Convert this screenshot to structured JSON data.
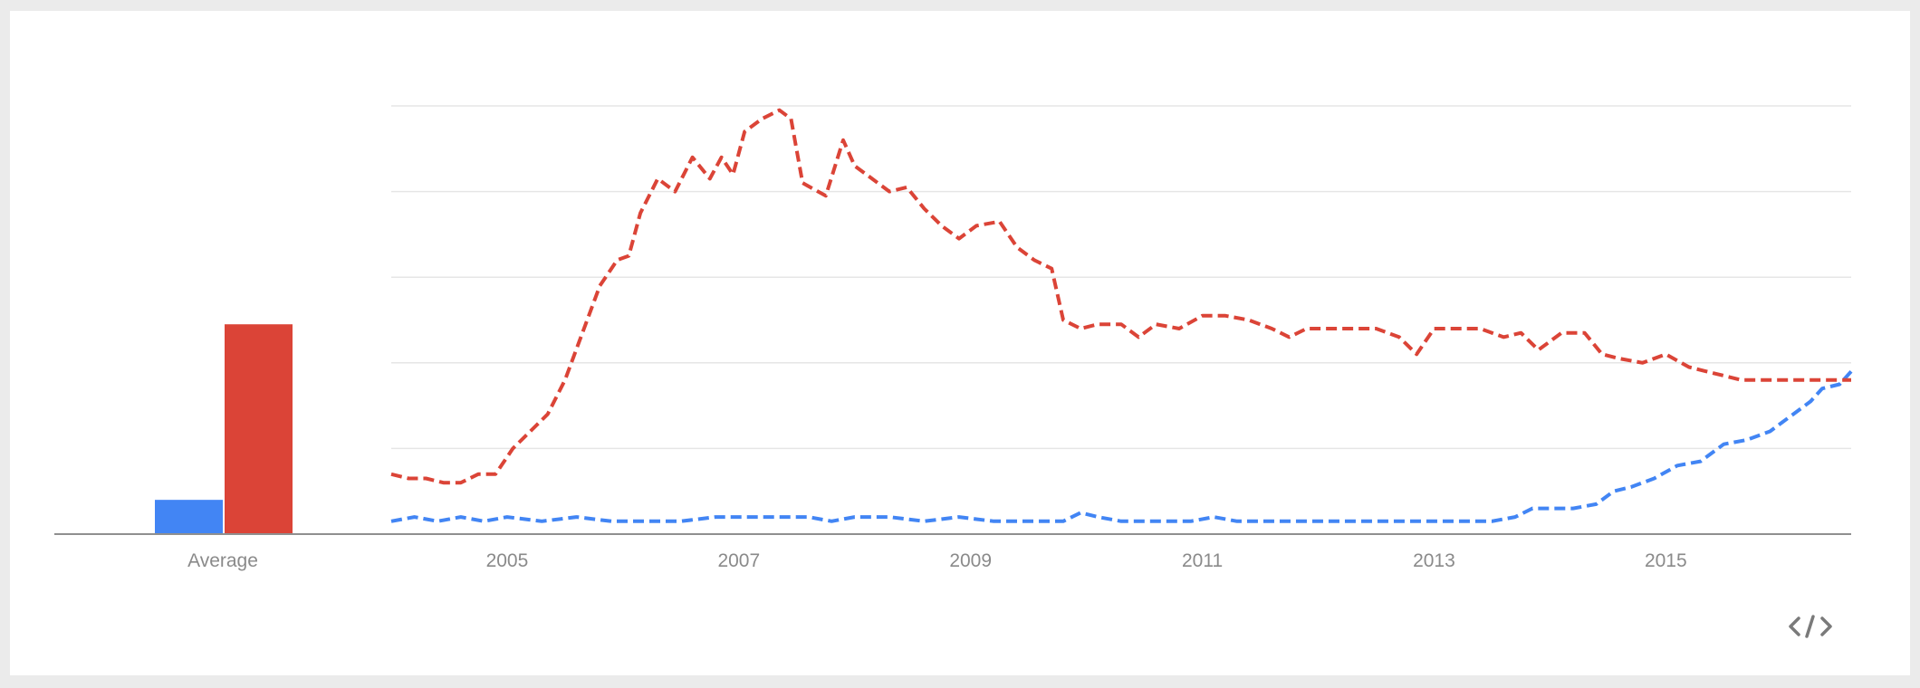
{
  "chart_data": {
    "type": "line",
    "average_bars": {
      "category": "Average",
      "values": [
        8,
        49
      ]
    },
    "x_ticks": [
      "2005",
      "2007",
      "2009",
      "2011",
      "2013",
      "2015"
    ],
    "xlim": [
      2004,
      2016.6
    ],
    "ylim": [
      0,
      100
    ],
    "grid": true,
    "series": [
      {
        "color": "#4285f4",
        "points": [
          [
            2004.0,
            3
          ],
          [
            2004.2,
            4
          ],
          [
            2004.4,
            3
          ],
          [
            2004.6,
            4
          ],
          [
            2004.8,
            3
          ],
          [
            2005.0,
            4
          ],
          [
            2005.3,
            3
          ],
          [
            2005.6,
            4
          ],
          [
            2005.9,
            3
          ],
          [
            2006.2,
            3
          ],
          [
            2006.5,
            3
          ],
          [
            2006.8,
            4
          ],
          [
            2007.1,
            4
          ],
          [
            2007.4,
            4
          ],
          [
            2007.6,
            4
          ],
          [
            2007.8,
            3
          ],
          [
            2008.0,
            4
          ],
          [
            2008.3,
            4
          ],
          [
            2008.6,
            3
          ],
          [
            2008.9,
            4
          ],
          [
            2009.2,
            3
          ],
          [
            2009.5,
            3
          ],
          [
            2009.8,
            3
          ],
          [
            2009.95,
            5
          ],
          [
            2010.1,
            4
          ],
          [
            2010.3,
            3
          ],
          [
            2010.6,
            3
          ],
          [
            2010.9,
            3
          ],
          [
            2011.1,
            4
          ],
          [
            2011.3,
            3
          ],
          [
            2011.6,
            3
          ],
          [
            2012.0,
            3
          ],
          [
            2012.4,
            3
          ],
          [
            2012.8,
            3
          ],
          [
            2013.2,
            3
          ],
          [
            2013.5,
            3
          ],
          [
            2013.7,
            4
          ],
          [
            2013.85,
            6
          ],
          [
            2014.0,
            6
          ],
          [
            2014.2,
            6
          ],
          [
            2014.4,
            7
          ],
          [
            2014.55,
            10
          ],
          [
            2014.7,
            11
          ],
          [
            2014.9,
            13
          ],
          [
            2015.1,
            16
          ],
          [
            2015.3,
            17
          ],
          [
            2015.5,
            21
          ],
          [
            2015.7,
            22
          ],
          [
            2015.9,
            24
          ],
          [
            2016.0,
            26
          ],
          [
            2016.1,
            28
          ],
          [
            2016.25,
            31
          ],
          [
            2016.35,
            34
          ],
          [
            2016.5,
            35
          ],
          [
            2016.6,
            38
          ]
        ]
      },
      {
        "color": "#db4437",
        "points": [
          [
            2004.0,
            14
          ],
          [
            2004.15,
            13
          ],
          [
            2004.3,
            13
          ],
          [
            2004.45,
            12
          ],
          [
            2004.6,
            12
          ],
          [
            2004.75,
            14
          ],
          [
            2004.9,
            14
          ],
          [
            2005.05,
            20
          ],
          [
            2005.2,
            24
          ],
          [
            2005.35,
            28
          ],
          [
            2005.5,
            36
          ],
          [
            2005.65,
            47
          ],
          [
            2005.8,
            58
          ],
          [
            2005.95,
            64
          ],
          [
            2006.05,
            65
          ],
          [
            2006.15,
            75
          ],
          [
            2006.3,
            83
          ],
          [
            2006.45,
            80
          ],
          [
            2006.6,
            88
          ],
          [
            2006.75,
            83
          ],
          [
            2006.85,
            88
          ],
          [
            2006.95,
            84
          ],
          [
            2007.05,
            94
          ],
          [
            2007.2,
            97
          ],
          [
            2007.35,
            99
          ],
          [
            2007.45,
            97
          ],
          [
            2007.55,
            82
          ],
          [
            2007.75,
            79
          ],
          [
            2007.9,
            92
          ],
          [
            2008.0,
            86
          ],
          [
            2008.15,
            83
          ],
          [
            2008.3,
            80
          ],
          [
            2008.45,
            81
          ],
          [
            2008.6,
            76
          ],
          [
            2008.75,
            72
          ],
          [
            2008.9,
            69
          ],
          [
            2009.05,
            72
          ],
          [
            2009.25,
            73
          ],
          [
            2009.4,
            67
          ],
          [
            2009.55,
            64
          ],
          [
            2009.7,
            62
          ],
          [
            2009.8,
            50
          ],
          [
            2009.95,
            48
          ],
          [
            2010.1,
            49
          ],
          [
            2010.3,
            49
          ],
          [
            2010.45,
            46
          ],
          [
            2010.6,
            49
          ],
          [
            2010.8,
            48
          ],
          [
            2011.0,
            51
          ],
          [
            2011.2,
            51
          ],
          [
            2011.4,
            50
          ],
          [
            2011.6,
            48
          ],
          [
            2011.75,
            46
          ],
          [
            2011.9,
            48
          ],
          [
            2012.1,
            48
          ],
          [
            2012.3,
            48
          ],
          [
            2012.5,
            48
          ],
          [
            2012.7,
            46
          ],
          [
            2012.85,
            42
          ],
          [
            2013.0,
            48
          ],
          [
            2013.2,
            48
          ],
          [
            2013.4,
            48
          ],
          [
            2013.6,
            46
          ],
          [
            2013.75,
            47
          ],
          [
            2013.9,
            43
          ],
          [
            2014.1,
            47
          ],
          [
            2014.3,
            47
          ],
          [
            2014.45,
            42
          ],
          [
            2014.6,
            41
          ],
          [
            2014.8,
            40
          ],
          [
            2015.0,
            42
          ],
          [
            2015.2,
            39
          ],
          [
            2015.35,
            38
          ],
          [
            2015.5,
            37
          ],
          [
            2015.65,
            36
          ],
          [
            2015.8,
            36
          ],
          [
            2015.95,
            36
          ],
          [
            2016.1,
            36
          ],
          [
            2016.3,
            36
          ],
          [
            2016.6,
            36
          ]
        ]
      }
    ]
  },
  "embed_icon": "code-embed-icon"
}
